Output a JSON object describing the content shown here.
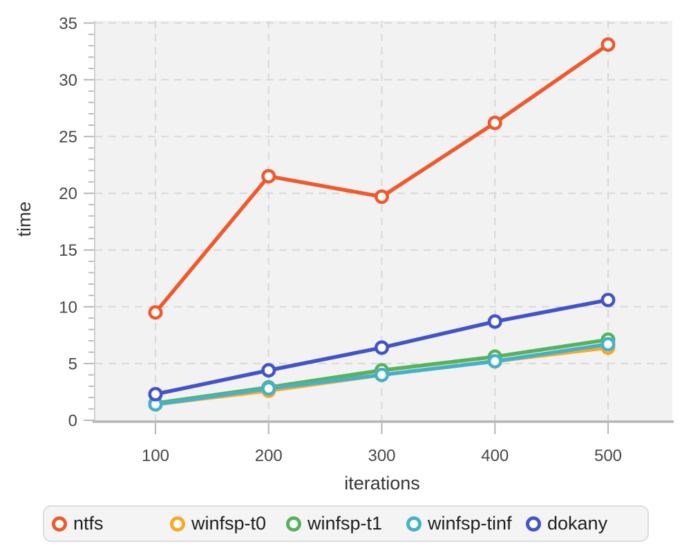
{
  "chart_data": {
    "type": "line",
    "title": "",
    "xlabel": "iterations",
    "ylabel": "time",
    "x": [
      100,
      200,
      300,
      400,
      500
    ],
    "xticks": [
      "100",
      "200",
      "300",
      "400",
      "500"
    ],
    "yticks": [
      0,
      5,
      10,
      15,
      20,
      25,
      30,
      35
    ],
    "xlim": [
      46,
      557
    ],
    "ylim": [
      0,
      35.2
    ],
    "grid": true,
    "grid_style": "dashed",
    "legend_position": "bottom",
    "series": [
      {
        "name": "ntfs",
        "color": "#f0592b",
        "values": [
          9.5,
          21.5,
          19.7,
          26.2,
          33.1
        ]
      },
      {
        "name": "winfsp-t0",
        "color": "#f9a825",
        "values": [
          1.4,
          2.6,
          4.0,
          5.2,
          6.4
        ]
      },
      {
        "name": "winfsp-t1",
        "color": "#57b25c",
        "values": [
          1.5,
          2.9,
          4.4,
          5.6,
          7.1
        ]
      },
      {
        "name": "winfsp-tinf",
        "color": "#45b1c8",
        "values": [
          1.4,
          2.8,
          4.0,
          5.2,
          6.7
        ]
      },
      {
        "name": "dokany",
        "color": "#4254c8",
        "values": [
          2.3,
          4.4,
          6.4,
          8.7,
          10.6
        ]
      }
    ],
    "panel_bg": "#f2f2f2",
    "gridline_color": "#d8d8d8",
    "axis_line_color": "#b5b5b5",
    "tick_color": "#b5b5b5"
  },
  "legend": {
    "items": [
      "ntfs",
      "winfsp-t0",
      "winfsp-t1",
      "winfsp-tinf",
      "dokany"
    ]
  }
}
